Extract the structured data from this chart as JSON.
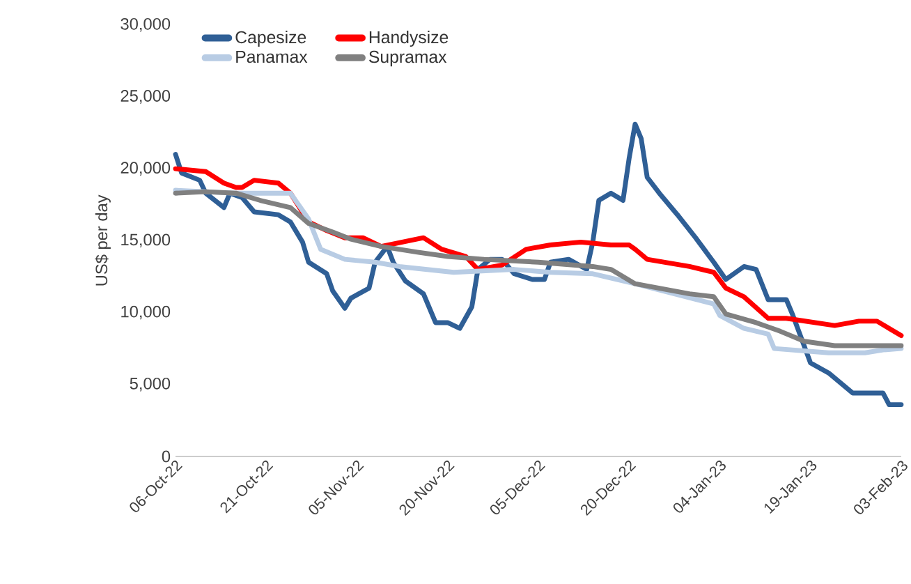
{
  "chart_data": {
    "type": "line",
    "ylabel": "US$ per day",
    "xlim": [
      "2022-10-06",
      "2023-02-03"
    ],
    "xticks": [
      {
        "value": "2022-10-06",
        "label": "06-Oct-22"
      },
      {
        "value": "2022-10-21",
        "label": "21-Oct-22"
      },
      {
        "value": "2022-11-05",
        "label": "05-Nov-22"
      },
      {
        "value": "2022-11-20",
        "label": "20-Nov-22"
      },
      {
        "value": "2022-12-05",
        "label": "05-Dec-22"
      },
      {
        "value": "2022-12-20",
        "label": "20-Dec-22"
      },
      {
        "value": "2023-01-04",
        "label": "04-Jan-23"
      },
      {
        "value": "2023-01-19",
        "label": "19-Jan-23"
      },
      {
        "value": "2023-02-03",
        "label": "03-Feb-23"
      }
    ],
    "ylim": [
      0,
      30000
    ],
    "yticks": [
      0,
      {
        "value": 5000,
        "label": "5,000"
      },
      {
        "value": 10000,
        "label": "10,000"
      },
      {
        "value": 15000,
        "label": "15,000"
      },
      {
        "value": 20000,
        "label": "20,000"
      },
      {
        "value": 25000,
        "label": "25,000"
      },
      {
        "value": 30000,
        "label": "30,000"
      }
    ],
    "legend": "top",
    "grid": false,
    "marker": "none",
    "line_style": "solid",
    "series": [
      {
        "name": "Capesize",
        "color": "#2f5f96",
        "x": [
          "2022-10-06",
          "2022-10-07",
          "2022-10-10",
          "2022-10-11",
          "2022-10-14",
          "2022-10-15",
          "2022-10-17",
          "2022-10-19",
          "2022-10-23",
          "2022-10-25",
          "2022-10-27",
          "2022-10-28",
          "2022-10-31",
          "2022-11-01",
          "2022-11-03",
          "2022-11-04",
          "2022-11-07",
          "2022-11-08",
          "2022-11-10",
          "2022-11-11",
          "2022-11-13",
          "2022-11-16",
          "2022-11-18",
          "2022-11-20",
          "2022-11-22",
          "2022-11-24",
          "2022-11-25",
          "2022-11-27",
          "2022-11-29",
          "2022-12-01",
          "2022-12-04",
          "2022-12-06",
          "2022-12-07",
          "2022-12-10",
          "2022-12-13",
          "2022-12-14",
          "2022-12-15",
          "2022-12-17",
          "2022-12-19",
          "2022-12-20",
          "2022-12-21",
          "2022-12-22",
          "2022-12-23",
          "2022-12-25",
          "2022-12-28",
          "2022-12-31",
          "2023-01-03",
          "2023-01-05",
          "2023-01-08",
          "2023-01-10",
          "2023-01-12",
          "2023-01-15",
          "2023-01-16",
          "2023-01-19",
          "2023-01-22",
          "2023-01-26",
          "2023-01-31",
          "2023-02-01",
          "2023-02-03"
        ],
        "values": [
          21000,
          19700,
          19200,
          18300,
          17300,
          18300,
          18000,
          17000,
          16800,
          16300,
          14900,
          13500,
          12700,
          11500,
          10300,
          11000,
          11700,
          13500,
          14600,
          13500,
          12200,
          11300,
          9300,
          9300,
          8900,
          10400,
          13000,
          13700,
          13700,
          12700,
          12300,
          12300,
          13500,
          13700,
          13000,
          14900,
          17800,
          18300,
          17800,
          20700,
          23100,
          22100,
          19400,
          18300,
          16800,
          15200,
          13500,
          12300,
          13200,
          13000,
          10900,
          10900,
          9900,
          6500,
          5800,
          4400,
          4400,
          3600,
          3600
        ]
      },
      {
        "name": "Handysize",
        "color": "#ff0000",
        "x": [
          "2022-10-06",
          "2022-10-11",
          "2022-10-14",
          "2022-10-16",
          "2022-10-17",
          "2022-10-19",
          "2022-10-23",
          "2022-10-25",
          "2022-10-28",
          "2022-10-31",
          "2022-11-03",
          "2022-11-06",
          "2022-11-09",
          "2022-11-16",
          "2022-11-19",
          "2022-11-23",
          "2022-11-25",
          "2022-11-29",
          "2022-12-03",
          "2022-12-07",
          "2022-12-12",
          "2022-12-17",
          "2022-12-20",
          "2022-12-21",
          "2022-12-23",
          "2022-12-30",
          "2023-01-03",
          "2023-01-05",
          "2023-01-08",
          "2023-01-12",
          "2023-01-15",
          "2023-01-23",
          "2023-01-27",
          "2023-01-30",
          "2023-02-01",
          "2023-02-03"
        ],
        "values": [
          20000,
          19800,
          19000,
          18700,
          18700,
          19200,
          19000,
          18300,
          16300,
          15700,
          15200,
          15200,
          14600,
          15200,
          14400,
          13900,
          13000,
          13300,
          14400,
          14700,
          14900,
          14700,
          14700,
          14400,
          13700,
          13200,
          12800,
          11700,
          11100,
          9600,
          9600,
          9100,
          9400,
          9400,
          8900,
          8400
        ]
      },
      {
        "name": "Panamax",
        "color": "#b8cce4",
        "x": [
          "2022-10-06",
          "2022-10-16",
          "2022-10-25",
          "2022-10-28",
          "2022-10-30",
          "2022-11-03",
          "2022-11-08",
          "2022-11-12",
          "2022-11-21",
          "2022-12-01",
          "2022-12-07",
          "2022-12-14",
          "2022-12-21",
          "2023-01-03",
          "2023-01-04",
          "2023-01-08",
          "2023-01-12",
          "2023-01-13",
          "2023-01-22",
          "2023-01-28",
          "2023-01-31",
          "2023-02-03"
        ],
        "values": [
          18500,
          18300,
          18300,
          16500,
          14400,
          13700,
          13500,
          13200,
          12800,
          13000,
          12800,
          12700,
          12000,
          10600,
          9800,
          8900,
          8500,
          7500,
          7200,
          7200,
          7400,
          7500
        ]
      },
      {
        "name": "Supramax",
        "color": "#808080",
        "x": [
          "2022-10-06",
          "2022-10-11",
          "2022-10-16",
          "2022-10-20",
          "2022-10-25",
          "2022-10-28",
          "2022-11-01",
          "2022-11-04",
          "2022-11-09",
          "2022-11-15",
          "2022-11-20",
          "2022-11-26",
          "2022-12-05",
          "2022-12-14",
          "2022-12-17",
          "2022-12-21",
          "2022-12-30",
          "2023-01-03",
          "2023-01-05",
          "2023-01-10",
          "2023-01-14",
          "2023-01-18",
          "2023-01-23",
          "2023-02-03"
        ],
        "values": [
          18300,
          18400,
          18300,
          17800,
          17300,
          16200,
          15600,
          15100,
          14600,
          14200,
          13900,
          13700,
          13500,
          13200,
          13000,
          12000,
          11300,
          11100,
          9900,
          9300,
          8700,
          8000,
          7700,
          7700
        ]
      }
    ]
  }
}
